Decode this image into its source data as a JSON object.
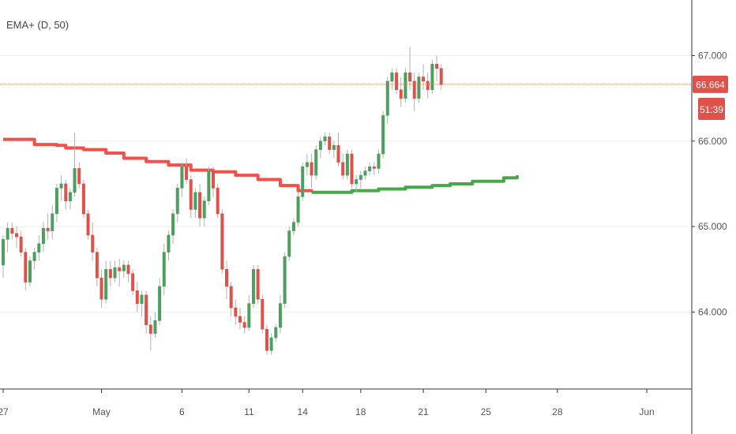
{
  "indicator": {
    "label": "EMA+ (D, 50)"
  },
  "colors": {
    "up": "#4d9f5f",
    "down": "#e0514a",
    "ema_above": "#f44f4a",
    "ema_below": "#4aa64a",
    "price_line": "#d8845e",
    "tag_bg": "#e0514a",
    "grid": "#ebeef3",
    "axis": "#333333"
  },
  "price_tag": {
    "value": "66.664",
    "countdown": "51:39"
  },
  "chart_data": {
    "type": "candlestick",
    "y_ticks": [
      "64.000",
      "65.000",
      "66.000",
      "67.000"
    ],
    "ylim": [
      63.1,
      67.65
    ],
    "x_ticks": [
      "27",
      "May",
      "6",
      "11",
      "14",
      "18",
      "21",
      "25",
      "28",
      "Jun"
    ],
    "last_price": 66.664,
    "candles": [
      [
        64.55,
        64.9,
        64.4,
        64.85
      ],
      [
        64.85,
        65.05,
        64.7,
        64.98
      ],
      [
        64.98,
        65.05,
        64.85,
        64.92
      ],
      [
        64.92,
        65.0,
        64.75,
        64.88
      ],
      [
        64.88,
        64.95,
        64.65,
        64.7
      ],
      [
        64.7,
        64.75,
        64.25,
        64.35
      ],
      [
        64.35,
        64.65,
        64.3,
        64.6
      ],
      [
        64.6,
        64.75,
        64.5,
        64.7
      ],
      [
        64.7,
        64.9,
        64.6,
        64.8
      ],
      [
        64.8,
        65.05,
        64.7,
        64.98
      ],
      [
        64.98,
        65.15,
        64.85,
        64.95
      ],
      [
        64.95,
        65.25,
        64.85,
        65.15
      ],
      [
        65.15,
        65.5,
        65.05,
        65.45
      ],
      [
        65.45,
        65.6,
        65.3,
        65.5
      ],
      [
        65.5,
        65.55,
        65.2,
        65.3
      ],
      [
        65.3,
        65.45,
        65.2,
        65.4
      ],
      [
        65.4,
        66.1,
        65.35,
        65.68
      ],
      [
        65.68,
        65.75,
        65.45,
        65.5
      ],
      [
        65.5,
        65.55,
        65.1,
        65.15
      ],
      [
        65.15,
        65.2,
        64.85,
        64.9
      ],
      [
        64.9,
        65.05,
        64.6,
        64.7
      ],
      [
        64.7,
        64.75,
        64.3,
        64.4
      ],
      [
        64.4,
        64.5,
        64.05,
        64.15
      ],
      [
        64.15,
        64.6,
        64.1,
        64.5
      ],
      [
        64.5,
        64.6,
        64.3,
        64.4
      ],
      [
        64.4,
        64.6,
        64.35,
        64.52
      ],
      [
        64.52,
        64.62,
        64.3,
        64.48
      ],
      [
        64.48,
        64.6,
        64.4,
        64.55
      ],
      [
        64.55,
        64.6,
        64.35,
        64.45
      ],
      [
        64.45,
        64.5,
        64.2,
        64.25
      ],
      [
        64.25,
        64.35,
        64.0,
        64.1
      ],
      [
        64.1,
        64.25,
        63.95,
        64.2
      ],
      [
        64.2,
        64.25,
        63.75,
        63.85
      ],
      [
        63.85,
        63.95,
        63.55,
        63.75
      ],
      [
        63.75,
        64.0,
        63.7,
        63.9
      ],
      [
        63.9,
        64.4,
        63.85,
        64.3
      ],
      [
        64.3,
        64.8,
        64.2,
        64.7
      ],
      [
        64.7,
        64.95,
        64.6,
        64.9
      ],
      [
        64.9,
        65.2,
        64.8,
        65.15
      ],
      [
        65.15,
        65.5,
        65.05,
        65.45
      ],
      [
        65.45,
        65.75,
        65.35,
        65.7
      ],
      [
        65.7,
        65.8,
        65.5,
        65.55
      ],
      [
        65.55,
        65.6,
        65.1,
        65.2
      ],
      [
        65.2,
        65.45,
        65.1,
        65.4
      ],
      [
        65.4,
        65.5,
        65.0,
        65.1
      ],
      [
        65.1,
        65.35,
        65.0,
        65.3
      ],
      [
        65.3,
        65.7,
        65.25,
        65.65
      ],
      [
        65.65,
        65.7,
        65.35,
        65.45
      ],
      [
        65.45,
        65.5,
        65.1,
        65.15
      ],
      [
        65.15,
        65.2,
        64.45,
        64.5
      ],
      [
        64.5,
        64.6,
        64.15,
        64.3
      ],
      [
        64.3,
        64.35,
        63.95,
        64.05
      ],
      [
        64.05,
        64.15,
        63.85,
        63.95
      ],
      [
        63.95,
        64.05,
        63.8,
        63.88
      ],
      [
        63.88,
        63.95,
        63.75,
        63.82
      ],
      [
        63.82,
        64.2,
        63.78,
        64.1
      ],
      [
        64.1,
        64.55,
        64.05,
        64.5
      ],
      [
        64.5,
        64.55,
        64.1,
        64.15
      ],
      [
        64.15,
        64.2,
        63.75,
        63.8
      ],
      [
        63.8,
        63.85,
        63.5,
        63.55
      ],
      [
        63.55,
        63.75,
        63.5,
        63.7
      ],
      [
        63.7,
        63.85,
        63.65,
        63.82
      ],
      [
        63.82,
        64.2,
        63.75,
        64.1
      ],
      [
        64.1,
        64.7,
        64.05,
        64.65
      ],
      [
        64.65,
        65.0,
        64.6,
        64.95
      ],
      [
        64.95,
        65.1,
        64.9,
        65.05
      ],
      [
        65.05,
        65.4,
        65.0,
        65.35
      ],
      [
        65.35,
        65.75,
        65.3,
        65.7
      ],
      [
        65.7,
        65.85,
        65.6,
        65.75
      ],
      [
        65.75,
        65.85,
        65.45,
        65.6
      ],
      [
        65.6,
        65.95,
        65.55,
        65.9
      ],
      [
        65.9,
        66.05,
        65.8,
        66.0
      ],
      [
        66.0,
        66.1,
        65.95,
        66.05
      ],
      [
        66.05,
        66.1,
        65.85,
        65.9
      ],
      [
        65.9,
        66.0,
        65.8,
        65.95
      ],
      [
        65.95,
        66.1,
        65.7,
        65.75
      ],
      [
        65.75,
        65.85,
        65.55,
        65.6
      ],
      [
        65.6,
        65.9,
        65.55,
        65.85
      ],
      [
        65.85,
        65.9,
        65.45,
        65.5
      ],
      [
        65.5,
        65.6,
        65.4,
        65.55
      ],
      [
        65.55,
        65.65,
        65.45,
        65.6
      ],
      [
        65.6,
        65.7,
        65.55,
        65.65
      ],
      [
        65.65,
        65.75,
        65.6,
        65.7
      ],
      [
        65.7,
        65.75,
        65.6,
        65.68
      ],
      [
        65.68,
        65.9,
        65.62,
        65.85
      ],
      [
        65.85,
        66.35,
        65.8,
        66.3
      ],
      [
        66.3,
        66.75,
        66.2,
        66.7
      ],
      [
        66.7,
        66.85,
        66.6,
        66.8
      ],
      [
        66.8,
        66.85,
        66.55,
        66.6
      ],
      [
        66.6,
        66.75,
        66.4,
        66.5
      ],
      [
        66.5,
        66.85,
        66.45,
        66.8
      ],
      [
        66.8,
        67.1,
        66.6,
        66.7
      ],
      [
        66.7,
        66.8,
        66.35,
        66.5
      ],
      [
        66.5,
        66.8,
        66.45,
        66.75
      ],
      [
        66.75,
        66.9,
        66.6,
        66.7
      ],
      [
        66.7,
        66.8,
        66.5,
        66.6
      ],
      [
        66.6,
        66.95,
        66.55,
        66.9
      ],
      [
        66.9,
        67.0,
        66.7,
        66.85
      ],
      [
        66.85,
        66.9,
        66.6,
        66.66
      ]
    ],
    "x_tick_positions": [
      0,
      22,
      40,
      55,
      67,
      80,
      94,
      108,
      124,
      144
    ],
    "ema_above": [
      [
        0,
        66.02
      ],
      [
        5,
        66.02
      ],
      [
        7,
        65.96
      ],
      [
        12,
        65.95
      ],
      [
        14,
        65.92
      ],
      [
        18,
        65.9
      ],
      [
        23,
        65.86
      ],
      [
        27,
        65.8
      ],
      [
        32,
        65.76
      ],
      [
        37,
        65.72
      ],
      [
        42,
        65.66
      ],
      [
        47,
        65.64
      ],
      [
        52,
        65.6
      ],
      [
        57,
        65.55
      ],
      [
        62,
        65.48
      ],
      [
        66,
        65.42
      ],
      [
        69,
        65.41
      ]
    ],
    "ema_below": [
      [
        69,
        65.4
      ],
      [
        72,
        65.4
      ],
      [
        78,
        65.42
      ],
      [
        84,
        65.44
      ],
      [
        90,
        65.46
      ],
      [
        96,
        65.48
      ],
      [
        100,
        65.5
      ],
      [
        105,
        65.53
      ],
      [
        112,
        65.57
      ],
      [
        115,
        65.6
      ]
    ]
  }
}
